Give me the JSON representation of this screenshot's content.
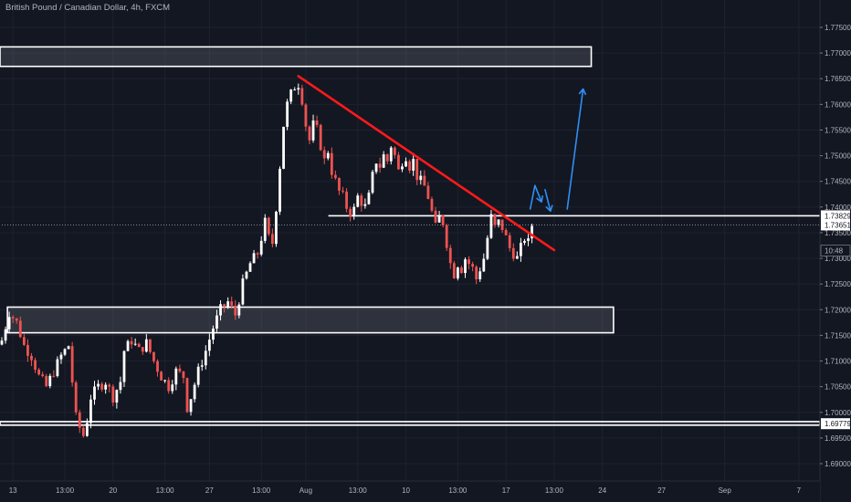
{
  "chart_data": {
    "type": "candlestick",
    "title": "British Pound / Canadian Dollar, 4h, FXCM",
    "colors": {
      "background": "#131722",
      "up": "#ffffff",
      "down": "#ef5350",
      "trendline": "#ff1a1a",
      "arrow": "#2f8ff5",
      "zone_border": "#ffffff",
      "grid": "#1e2230"
    },
    "y_axis": {
      "range": [
        1.685,
        1.778
      ],
      "tick_labels": [
        "1.77500",
        "1.77000",
        "1.76500",
        "1.76000",
        "1.75500",
        "1.75000",
        "1.74500",
        "1.74000",
        "1.73500",
        "1.73000",
        "1.72500",
        "1.72000",
        "1.71500",
        "1.71000",
        "1.70500",
        "1.70000",
        "1.69500",
        "1.69000"
      ],
      "price_tags": [
        {
          "label": "1.73829",
          "value": 1.73829,
          "style": "white"
        },
        {
          "label": "1.73651",
          "value": 1.73651,
          "style": "white"
        },
        {
          "label": "10:48",
          "value": 1.7315,
          "style": "dark"
        },
        {
          "label": "1.69779",
          "value": 1.69779,
          "style": "white"
        }
      ]
    },
    "x_axis": {
      "bar_range": [
        0,
        154
      ],
      "tick_labels": [
        {
          "label": "13",
          "bar": 3
        },
        {
          "label": "13:00",
          "bar": 17
        },
        {
          "label": "20",
          "bar": 30
        },
        {
          "label": "13:00",
          "bar": 44
        },
        {
          "label": "27",
          "bar": 56
        },
        {
          "label": "13:00",
          "bar": 70
        },
        {
          "label": "Aug",
          "bar": 82
        },
        {
          "label": "13:00",
          "bar": 96
        },
        {
          "label": "10",
          "bar": 109
        },
        {
          "label": "13:00",
          "bar": 123
        },
        {
          "label": "17",
          "bar": 136
        },
        {
          "label": "13:00",
          "bar": 149
        },
        {
          "label": "24",
          "bar": 162
        },
        {
          "label": "27",
          "bar": 178
        },
        {
          "label": "Sep",
          "bar": 195
        },
        {
          "label": "7",
          "bar": 215
        }
      ]
    },
    "zones": [
      {
        "name": "upper-supply-zone",
        "y_top": 1.7712,
        "y_bottom": 1.7674,
        "x_from": 0,
        "x_to": 159
      },
      {
        "name": "lower-demand-zone",
        "y_top": 1.7205,
        "y_bottom": 1.7155,
        "x_from": 2,
        "x_to": 165
      },
      {
        "name": "bottom-support-line",
        "y_top": 1.6982,
        "y_bottom": 1.6975,
        "x_from": 0,
        "x_to": 230
      }
    ],
    "levels": [
      {
        "name": "resistance-line",
        "value": 1.73829,
        "x_from": 93,
        "x_to": 230
      },
      {
        "name": "current-price-line",
        "value": 1.73651,
        "x_from": 0,
        "x_to": 230,
        "dotted": true
      }
    ],
    "trendline": {
      "from": {
        "bar": 80,
        "price": 1.7655
      },
      "to": {
        "bar": 149,
        "price": 1.7316
      }
    },
    "arrows": [
      {
        "points": [
          [
            142.5,
            1.7395
          ],
          [
            143.8,
            1.7442
          ],
          [
            145.6,
            1.741
          ]
        ]
      },
      {
        "points": [
          [
            146.5,
            1.7435
          ],
          [
            148.0,
            1.7392
          ]
        ]
      },
      {
        "points": [
          [
            152.5,
            1.7395
          ],
          [
            156.8,
            1.763
          ]
        ]
      }
    ],
    "key_prices": [
      [
        0,
        1.714
      ],
      [
        2,
        1.7195
      ],
      [
        4,
        1.7175
      ],
      [
        6,
        1.713
      ],
      [
        8,
        1.711
      ],
      [
        10,
        1.707
      ],
      [
        12,
        1.705
      ],
      [
        14,
        1.708
      ],
      [
        16,
        1.711
      ],
      [
        18,
        1.713
      ],
      [
        19,
        1.706
      ],
      [
        20,
        1.699
      ],
      [
        21,
        1.697
      ],
      [
        22,
        1.6955
      ],
      [
        23,
        1.6985
      ],
      [
        24,
        1.703
      ],
      [
        26,
        1.705
      ],
      [
        28,
        1.706
      ],
      [
        30,
        1.703
      ],
      [
        32,
        1.706
      ],
      [
        33,
        1.712
      ],
      [
        35,
        1.714
      ],
      [
        37,
        1.712
      ],
      [
        39,
        1.7135
      ],
      [
        41,
        1.71
      ],
      [
        43,
        1.707
      ],
      [
        45,
        1.705
      ],
      [
        47,
        1.708
      ],
      [
        49,
        1.707
      ],
      [
        50,
        1.701
      ],
      [
        51,
        1.703
      ],
      [
        53,
        1.708
      ],
      [
        55,
        1.712
      ],
      [
        57,
        1.7165
      ],
      [
        59,
        1.72
      ],
      [
        61,
        1.7215
      ],
      [
        63,
        1.719
      ],
      [
        65,
        1.725
      ],
      [
        67,
        1.729
      ],
      [
        69,
        1.731
      ],
      [
        71,
        1.737
      ],
      [
        72,
        1.734
      ],
      [
        73,
        1.733
      ],
      [
        74,
        1.74
      ],
      [
        75,
        1.748
      ],
      [
        76,
        1.756
      ],
      [
        77,
        1.76
      ],
      [
        78,
        1.762
      ],
      [
        79,
        1.7635
      ],
      [
        80,
        1.764
      ],
      [
        81,
        1.761
      ],
      [
        82,
        1.756
      ],
      [
        83,
        1.753
      ],
      [
        84,
        1.756
      ],
      [
        85,
        1.755
      ],
      [
        86,
        1.752
      ],
      [
        87,
        1.749
      ],
      [
        88,
        1.751
      ],
      [
        89,
        1.747
      ],
      [
        90,
        1.745
      ],
      [
        91,
        1.743
      ],
      [
        92,
        1.742
      ],
      [
        93,
        1.74
      ],
      [
        94,
        1.739
      ],
      [
        95,
        1.7395
      ],
      [
        96,
        1.742
      ],
      [
        97,
        1.741
      ],
      [
        98,
        1.74
      ],
      [
        99,
        1.742
      ],
      [
        100,
        1.746
      ],
      [
        101,
        1.749
      ],
      [
        102,
        1.748
      ],
      [
        103,
        1.75
      ],
      [
        104,
        1.749
      ],
      [
        105,
        1.752
      ],
      [
        106,
        1.75
      ],
      [
        107,
        1.747
      ],
      [
        108,
        1.749
      ],
      [
        109,
        1.75
      ],
      [
        110,
        1.748
      ],
      [
        111,
        1.749
      ],
      [
        112,
        1.746
      ],
      [
        113,
        1.745
      ],
      [
        114,
        1.744
      ],
      [
        115,
        1.742
      ],
      [
        116,
        1.739
      ],
      [
        117,
        1.736
      ],
      [
        118,
        1.738
      ],
      [
        119,
        1.737
      ],
      [
        120,
        1.733
      ],
      [
        121,
        1.729
      ],
      [
        122,
        1.727
      ],
      [
        123,
        1.729
      ],
      [
        124,
        1.728
      ],
      [
        125,
        1.73
      ],
      [
        126,
        1.729
      ],
      [
        127,
        1.728
      ],
      [
        128,
        1.726
      ],
      [
        129,
        1.728
      ],
      [
        130,
        1.73
      ],
      [
        131,
        1.734
      ],
      [
        132,
        1.738
      ],
      [
        133,
        1.736
      ],
      [
        134,
        1.737
      ],
      [
        135,
        1.736
      ],
      [
        136,
        1.734
      ],
      [
        137,
        1.732
      ],
      [
        138,
        1.731
      ],
      [
        139,
        1.73
      ],
      [
        140,
        1.732
      ],
      [
        141,
        1.734
      ],
      [
        142,
        1.733
      ],
      [
        143,
        1.7365
      ]
    ]
  }
}
